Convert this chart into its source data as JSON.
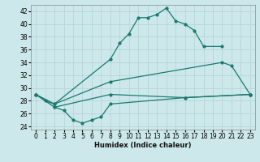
{
  "xlabel": "Humidex (Indice chaleur)",
  "background_color": "#cce8ea",
  "grid_color": "#b8d8da",
  "line_color": "#1a7a6e",
  "xlim": [
    -0.5,
    23.5
  ],
  "ylim": [
    23.5,
    43.0
  ],
  "xticks": [
    0,
    1,
    2,
    3,
    4,
    5,
    6,
    7,
    8,
    9,
    10,
    11,
    12,
    13,
    14,
    15,
    16,
    17,
    18,
    19,
    20,
    21,
    22,
    23
  ],
  "yticks": [
    24,
    26,
    28,
    30,
    32,
    34,
    36,
    38,
    40,
    42
  ],
  "s1_x": [
    0,
    1,
    2,
    8,
    9,
    10,
    11,
    12,
    13,
    14,
    15,
    16,
    17,
    18,
    20
  ],
  "s1_y": [
    29.0,
    28.0,
    27.5,
    34.5,
    37.0,
    38.5,
    41.0,
    41.0,
    41.5,
    42.5,
    40.5,
    40.0,
    39.0,
    36.5,
    36.5
  ],
  "s2_x": [
    0,
    2,
    8,
    20,
    21,
    23
  ],
  "s2_y": [
    29.0,
    27.5,
    31.0,
    34.0,
    33.5,
    29.0
  ],
  "s3_x": [
    0,
    2,
    8,
    16,
    23
  ],
  "s3_y": [
    29.0,
    27.0,
    29.0,
    28.5,
    29.0
  ],
  "s4_x": [
    2,
    3,
    4,
    5,
    6,
    7,
    8,
    16,
    23
  ],
  "s4_y": [
    27.0,
    26.5,
    25.0,
    24.5,
    25.0,
    25.5,
    27.5,
    28.5,
    29.0
  ]
}
